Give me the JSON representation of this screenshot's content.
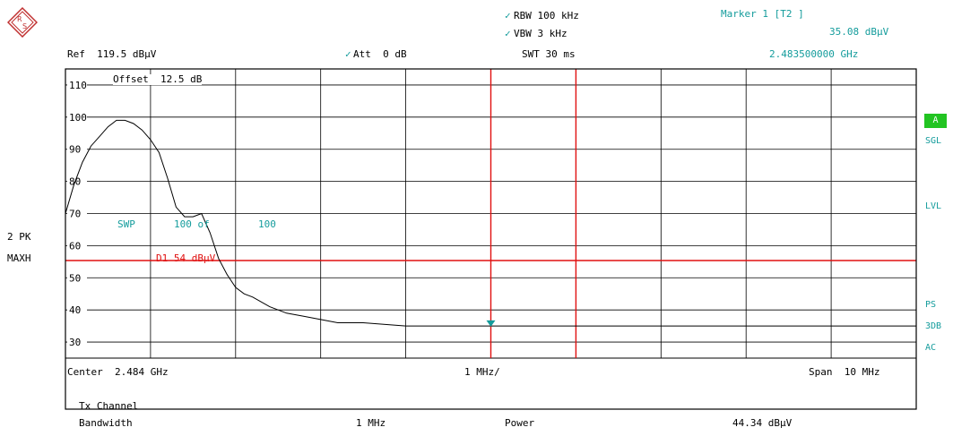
{
  "header": {
    "ref": "Ref  119.5 dBµV",
    "att": "Att  0 dB",
    "rbw": "RBW 100 kHz",
    "vbw": "VBW 3 kHz",
    "swt": "SWT 30 ms",
    "marker_title": "Marker 1 [T2 ]",
    "marker_level": "35.08 dBµV",
    "marker_freq": "2.483500000 GHz"
  },
  "left_labels": {
    "detector": "2 PK",
    "mode": "MAXH"
  },
  "grid_annotations": {
    "offset": "Offset  12.5 dB",
    "swp": "SWP",
    "swp_count": "100 of",
    "swp_total": "100",
    "display_line": "D1 54 dBµV"
  },
  "y_ticks": [
    "110",
    "100",
    "90",
    "80",
    "70",
    "60",
    "50",
    "40",
    "30"
  ],
  "right_labels": {
    "a": "A",
    "sgl": "SGL",
    "lvl": "LVL",
    "ps": "PS",
    "3db": "3DB",
    "ac": "AC"
  },
  "footer": {
    "center": "Center  2.484 GHz",
    "per_div": "1 MHz/",
    "span": "Span  10 MHz",
    "tx_channel": "Tx Channel",
    "bandwidth_label": "Bandwidth",
    "bandwidth_value": "1 MHz",
    "power_label": "Power",
    "power_value": "44.34 dBµV"
  },
  "chart_data": {
    "type": "line",
    "xlim_mhz": [
      -5,
      5
    ],
    "ylim": [
      20,
      120
    ],
    "display_line_db": 54,
    "marker_x_mhz": 0,
    "marker_y_db": 35.08,
    "x_mhz": [
      -5.0,
      -4.9,
      -4.8,
      -4.7,
      -4.6,
      -4.5,
      -4.4,
      -4.3,
      -4.2,
      -4.1,
      -4.0,
      -3.9,
      -3.8,
      -3.7,
      -3.6,
      -3.5,
      -3.4,
      -3.3,
      -3.2,
      -3.1,
      -3.0,
      -2.9,
      -2.8,
      -2.6,
      -2.4,
      -2.2,
      -2.0,
      -1.8,
      -1.5,
      -1.0,
      -0.5,
      0.0,
      0.5,
      1.0,
      1.5,
      2.0,
      2.5,
      3.0,
      3.5,
      4.0,
      4.5,
      5.0
    ],
    "y_db": [
      70,
      79,
      86,
      91,
      94,
      97,
      99,
      99,
      98,
      96,
      93,
      89,
      81,
      72,
      69,
      69,
      70,
      64,
      56,
      51,
      47,
      45,
      44,
      41,
      39,
      38,
      37,
      36,
      36,
      35,
      35,
      35,
      35,
      35,
      35,
      35,
      35,
      35,
      35,
      35,
      35,
      35
    ]
  }
}
